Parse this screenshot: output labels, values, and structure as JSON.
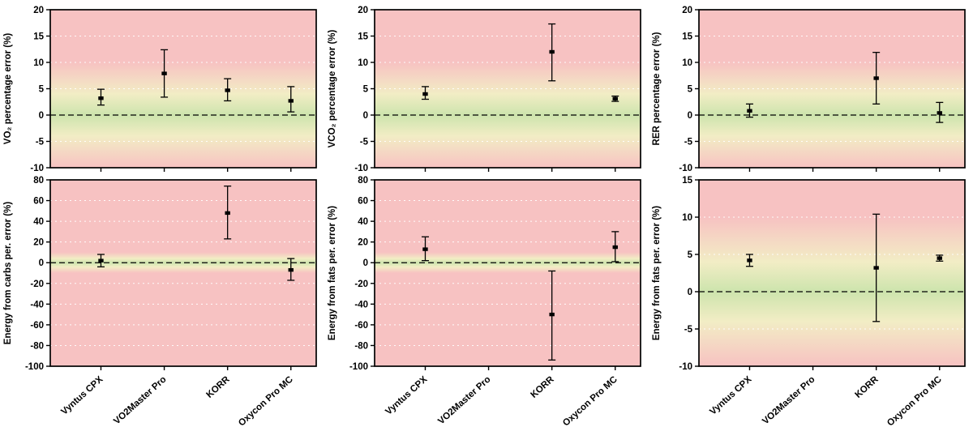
{
  "figure": {
    "background": "#ffffff"
  },
  "style": {
    "band_red": "#f7c2c2",
    "band_yellow": "#f2edc5",
    "band_green": "#cde4ad",
    "marker_color": "#000000",
    "zero_line_color": "#000000",
    "grid_color": "#ffffff",
    "frame_color": "#000000"
  },
  "categories": [
    "Vyntus CPX",
    "VO2Master Pro",
    "KORR",
    "Oxycon Pro MC"
  ],
  "chart_data": [
    {
      "type": "errorbar",
      "ylabel": "VO₂ percentage error (%)",
      "ylim": [
        -10,
        20
      ],
      "ytick_step": 5,
      "show_x_labels": false,
      "points": [
        {
          "label": "Vyntus CPX",
          "mean": 3.2,
          "lo": 1.9,
          "hi": 4.9
        },
        {
          "label": "VO2Master Pro",
          "mean": 7.9,
          "lo": 3.4,
          "hi": 12.4
        },
        {
          "label": "KORR",
          "mean": 4.7,
          "lo": 2.7,
          "hi": 6.9
        },
        {
          "label": "Oxycon Pro MC",
          "mean": 2.7,
          "lo": 0.6,
          "hi": 5.4
        }
      ]
    },
    {
      "type": "errorbar",
      "ylabel": "VCO₂ percentage error (%)",
      "ylim": [
        -10,
        20
      ],
      "ytick_step": 5,
      "show_x_labels": false,
      "points": [
        {
          "label": "Vyntus CPX",
          "mean": 4.0,
          "lo": 3.0,
          "hi": 5.4
        },
        {
          "label": "VO2Master Pro",
          "mean": null,
          "lo": null,
          "hi": null
        },
        {
          "label": "KORR",
          "mean": 12.0,
          "lo": 6.5,
          "hi": 17.3
        },
        {
          "label": "Oxycon Pro MC",
          "mean": 3.1,
          "lo": 2.6,
          "hi": 3.6
        }
      ]
    },
    {
      "type": "errorbar",
      "ylabel": "RER percentage error (%)",
      "ylim": [
        -10,
        20
      ],
      "ytick_step": 5,
      "show_x_labels": false,
      "points": [
        {
          "label": "Vyntus CPX",
          "mean": 0.8,
          "lo": -0.4,
          "hi": 2.1
        },
        {
          "label": "VO2Master Pro",
          "mean": null,
          "lo": null,
          "hi": null
        },
        {
          "label": "KORR",
          "mean": 7.0,
          "lo": 2.1,
          "hi": 11.9
        },
        {
          "label": "Oxycon Pro MC",
          "mean": 0.4,
          "lo": -1.4,
          "hi": 2.4
        }
      ]
    },
    {
      "type": "errorbar",
      "ylabel": "Energy from carbs per. error (%)",
      "ylim": [
        -100,
        80
      ],
      "ytick_step": 20,
      "show_x_labels": true,
      "points": [
        {
          "label": "Vyntus CPX",
          "mean": 2,
          "lo": -4,
          "hi": 8
        },
        {
          "label": "VO2Master Pro",
          "mean": null,
          "lo": null,
          "hi": null
        },
        {
          "label": "KORR",
          "mean": 48,
          "lo": 23,
          "hi": 74
        },
        {
          "label": "Oxycon Pro MC",
          "mean": -7,
          "lo": -17,
          "hi": 4
        }
      ]
    },
    {
      "type": "errorbar",
      "ylabel": "Energy from fats per. error (%)",
      "ylim": [
        -100,
        80
      ],
      "ytick_step": 20,
      "show_x_labels": true,
      "points": [
        {
          "label": "Vyntus CPX",
          "mean": 13,
          "lo": 2,
          "hi": 25
        },
        {
          "label": "VO2Master Pro",
          "mean": null,
          "lo": null,
          "hi": null
        },
        {
          "label": "KORR",
          "mean": -50,
          "lo": -94,
          "hi": -8
        },
        {
          "label": "Oxycon Pro MC",
          "mean": 15,
          "lo": 1,
          "hi": 30
        }
      ]
    },
    {
      "type": "errorbar",
      "ylabel": "Energy from fats per. error (%)",
      "ylim": [
        -10,
        15
      ],
      "ytick_step": 5,
      "show_x_labels": true,
      "points": [
        {
          "label": "Vyntus CPX",
          "mean": 4.2,
          "lo": 3.4,
          "hi": 5.0
        },
        {
          "label": "VO2Master Pro",
          "mean": null,
          "lo": null,
          "hi": null
        },
        {
          "label": "KORR",
          "mean": 3.2,
          "lo": -4.0,
          "hi": 10.4
        },
        {
          "label": "Oxycon Pro MC",
          "mean": 4.5,
          "lo": 4.1,
          "hi": 4.9
        }
      ]
    }
  ]
}
